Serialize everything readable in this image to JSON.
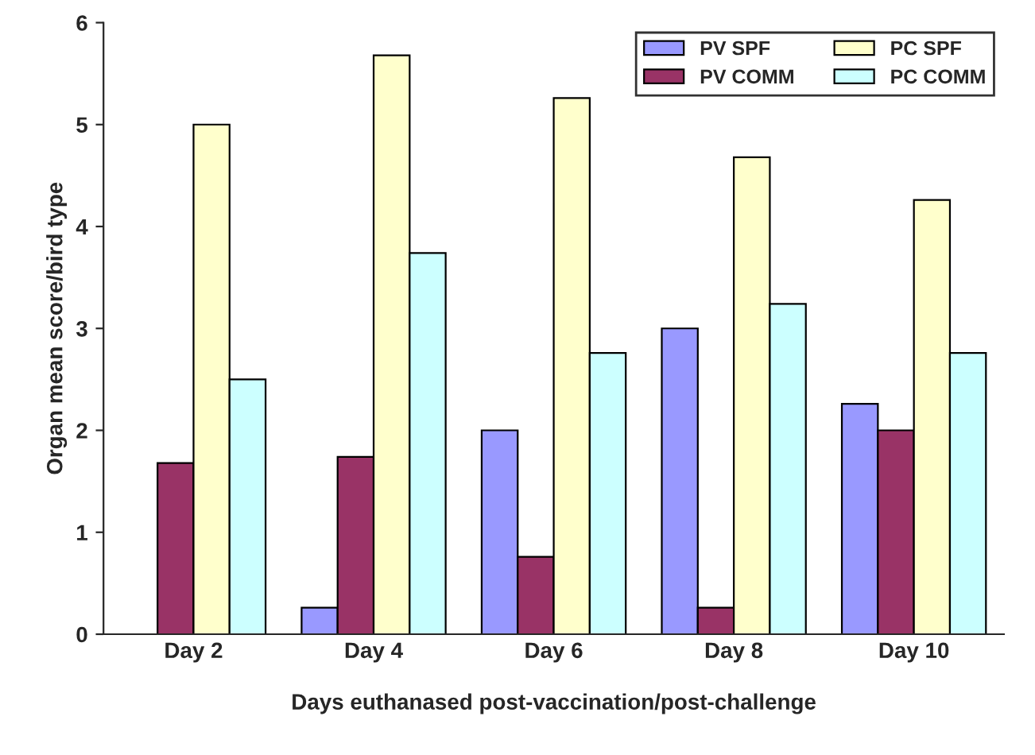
{
  "chart_data": {
    "type": "bar",
    "xlabel": "Days euthanased post-vaccination/post-challenge",
    "ylabel": "Organ mean score/bird type",
    "categories": [
      "Day 2",
      "Day 4",
      "Day 6",
      "Day 8",
      "Day 10"
    ],
    "series": [
      {
        "name": "PV SPF",
        "color": "#9999ff",
        "values": [
          null,
          0.26,
          2.0,
          3.0,
          2.26
        ]
      },
      {
        "name": "PV COMM",
        "color": "#993366",
        "values": [
          1.68,
          1.74,
          0.76,
          0.26,
          2.0
        ]
      },
      {
        "name": "PC SPF",
        "color": "#ffffcc",
        "values": [
          5.0,
          5.68,
          5.26,
          4.68,
          4.26
        ]
      },
      {
        "name": "PC COMM",
        "color": "#ccffff",
        "values": [
          2.5,
          3.74,
          2.76,
          3.24,
          2.76
        ]
      }
    ],
    "ylim": [
      0,
      6
    ],
    "yticks": [
      0,
      1,
      2,
      3,
      4,
      5,
      6
    ],
    "grid": false,
    "legend": "top right"
  }
}
